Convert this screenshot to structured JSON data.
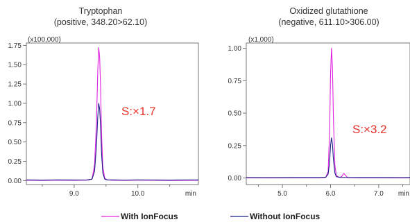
{
  "chart_data": [
    {
      "type": "line",
      "title": "Tryptophan",
      "subtitle": "(positive, 348.20>62.10)",
      "y_multiplier_label": "(x100,000)",
      "xlabel": "min",
      "xlim": [
        8.25,
        10.95
      ],
      "ylim": [
        -0.05,
        1.78
      ],
      "x_ticks": [
        9.0,
        10.0
      ],
      "x_tick_labels": [
        "9.0",
        "10.0"
      ],
      "y_ticks": [
        0.0,
        0.25,
        0.5,
        0.75,
        1.0,
        1.25,
        1.5,
        1.75
      ],
      "y_tick_labels": [
        "0.00",
        "0.25",
        "0.50",
        "0.75",
        "1.00",
        "1.25",
        "1.50",
        "1.75"
      ],
      "annotation": "S:×1.7",
      "series": [
        {
          "name": "With IonFocus",
          "color": "#e020e0",
          "x": [
            8.25,
            8.5,
            8.75,
            9.0,
            9.2,
            9.28,
            9.32,
            9.35,
            9.37,
            9.385,
            9.4,
            9.415,
            9.43,
            9.45,
            9.48,
            9.52,
            9.6,
            9.8,
            10.0,
            10.5,
            10.95
          ],
          "y": [
            0.005,
            0.003,
            0.006,
            0.004,
            0.006,
            0.02,
            0.2,
            0.75,
            1.4,
            1.72,
            1.6,
            1.2,
            0.6,
            0.18,
            0.03,
            0.01,
            0.005,
            0.004,
            0.006,
            0.003,
            0.005
          ]
        },
        {
          "name": "Without IonFocus",
          "color": "#1b1f8a",
          "x": [
            8.25,
            8.5,
            8.75,
            9.0,
            9.2,
            9.28,
            9.32,
            9.35,
            9.37,
            9.385,
            9.4,
            9.415,
            9.43,
            9.45,
            9.48,
            9.52,
            9.6,
            9.8,
            10.0,
            10.5,
            10.95
          ],
          "y": [
            0.01,
            0.008,
            0.01,
            0.009,
            0.01,
            0.02,
            0.12,
            0.45,
            0.82,
            1.0,
            0.93,
            0.7,
            0.35,
            0.1,
            0.02,
            0.01,
            0.01,
            0.008,
            0.01,
            0.008,
            0.01
          ]
        }
      ]
    },
    {
      "type": "line",
      "title": "Oxidized glutathione",
      "subtitle": "(negative, 611.10>306.00)",
      "y_multiplier_label": "(x1,000)",
      "xlabel": "min",
      "xlim": [
        4.25,
        7.65
      ],
      "ylim": [
        -0.05,
        1.04
      ],
      "x_ticks": [
        5.0,
        6.0,
        7.0
      ],
      "x_tick_labels": [
        "5.0",
        "6.0",
        "7.0"
      ],
      "y_ticks": [
        0.0,
        0.25,
        0.5,
        0.75,
        1.0
      ],
      "y_tick_labels": [
        "0.00",
        "0.25",
        "0.50",
        "0.75",
        "1.00"
      ],
      "annotation": "S:×3.2",
      "series": [
        {
          "name": "With IonFocus",
          "color": "#e020e0",
          "x": [
            4.25,
            4.75,
            5.25,
            5.75,
            5.9,
            5.95,
            5.98,
            6.0,
            6.02,
            6.04,
            6.06,
            6.09,
            6.12,
            6.18,
            6.23,
            6.26,
            6.28,
            6.31,
            6.36,
            6.6,
            7.0,
            7.5,
            7.65
          ],
          "y": [
            0.002,
            0.001,
            0.002,
            0.002,
            0.005,
            0.05,
            0.35,
            0.8,
            1.0,
            0.85,
            0.45,
            0.1,
            0.02,
            0.005,
            0.01,
            0.03,
            0.035,
            0.02,
            0.003,
            0.002,
            0.002,
            0.001,
            0.002
          ]
        },
        {
          "name": "Without IonFocus",
          "color": "#1b1f8a",
          "x": [
            4.25,
            4.75,
            5.25,
            5.75,
            5.9,
            5.95,
            5.98,
            6.0,
            6.02,
            6.04,
            6.06,
            6.09,
            6.12,
            6.2,
            6.5,
            7.0,
            7.5,
            7.65
          ],
          "y": [
            0.004,
            0.003,
            0.004,
            0.004,
            0.006,
            0.03,
            0.12,
            0.25,
            0.31,
            0.26,
            0.14,
            0.04,
            0.01,
            0.005,
            0.004,
            0.004,
            0.003,
            0.004
          ]
        }
      ]
    }
  ],
  "legend": [
    {
      "label": "With IonFocus",
      "color": "#e020e0"
    },
    {
      "label": "Without IonFocus",
      "color": "#1b1f8a"
    }
  ]
}
